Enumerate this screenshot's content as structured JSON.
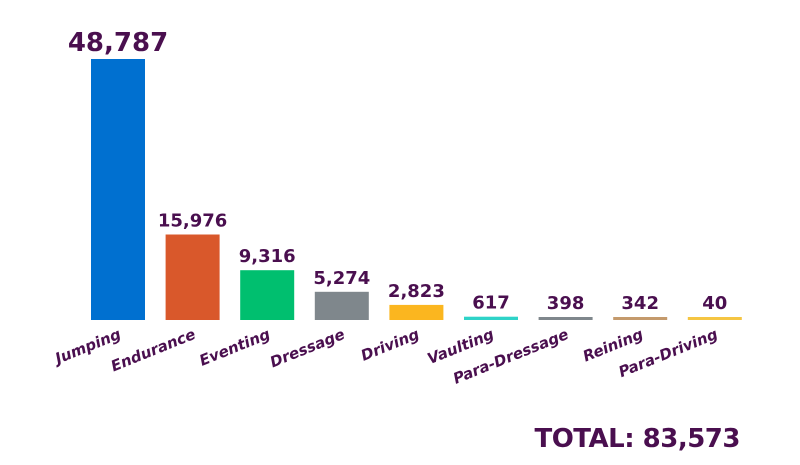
{
  "chart_data": {
    "type": "bar",
    "categories": [
      "Jumping",
      "Endurance",
      "Eventing",
      "Dressage",
      "Driving",
      "Vaulting",
      "Para-Dressage",
      "Reining",
      "Para-Driving"
    ],
    "values": [
      48787,
      15976,
      9316,
      5274,
      2823,
      617,
      398,
      342,
      40
    ],
    "value_labels": [
      "48,787",
      "15,976",
      "9,316",
      "5,274",
      "2,823",
      "617",
      "398",
      "342",
      "40"
    ],
    "colors": [
      "#0070d0",
      "#d9582b",
      "#00bf6f",
      "#7f878c",
      "#fbb61f",
      "#2ed3c8",
      "#7f878c",
      "#c49a6c",
      "#f5c542"
    ],
    "ylim": [
      0,
      48787
    ],
    "grid": false,
    "legend": "none"
  },
  "footer": {
    "total": "TOTAL: 83,573"
  }
}
